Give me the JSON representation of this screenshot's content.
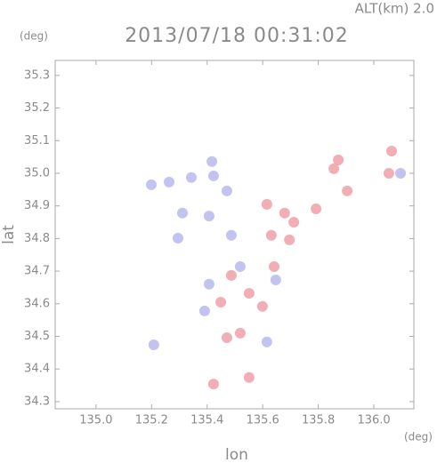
{
  "chart_data": {
    "type": "scatter",
    "title": "2013/07/18 00:31:02",
    "subtitle": "ALT(km) 2.0",
    "x_label": "lon",
    "y_label": "lat",
    "x_unit": "(deg)",
    "y_unit": "(deg)",
    "xlim": [
      134.853,
      136.144
    ],
    "ylim": [
      34.278,
      35.346
    ],
    "xticks": [
      {
        "value": 135,
        "label": "135.0"
      },
      135.2,
      135.4,
      135.6,
      135.8,
      {
        "value": 136,
        "label": "136.0"
      }
    ],
    "yticks": [
      34.3,
      34.4,
      34.5,
      34.6,
      34.7,
      34.8,
      34.9,
      {
        "value": 35,
        "label": "35.0"
      },
      35.1,
      35.2,
      35.3
    ],
    "series": [
      {
        "color": "#b8b8f0",
        "x": [
          135.199,
          135.263,
          135.343,
          135.423,
          135.417,
          135.311,
          135.407,
          135.471,
          135.295,
          135.208,
          136.096,
          135.487,
          135.407,
          135.615,
          135.391,
          135.519,
          135.647
        ],
        "y": [
          34.965,
          34.973,
          34.987,
          34.992,
          35.036,
          34.878,
          34.869,
          34.946,
          34.801,
          34.474,
          35.0,
          34.81,
          34.66,
          34.483,
          34.578,
          34.714,
          34.673
        ]
      },
      {
        "color": "#f0a0a8",
        "x": [
          135.487,
          135.551,
          135.599,
          135.615,
          135.679,
          135.696,
          135.631,
          135.792,
          135.712,
          135.872,
          135.856,
          136.054,
          136.064,
          135.904,
          135.551,
          135.471,
          135.423,
          135.519,
          135.641,
          135.449
        ],
        "y": [
          34.687,
          34.632,
          34.592,
          34.905,
          34.878,
          34.796,
          34.81,
          34.891,
          34.85,
          35.041,
          35.014,
          35.0,
          35.068,
          34.946,
          34.374,
          34.496,
          34.354,
          34.51,
          34.714,
          34.605
        ]
      }
    ]
  }
}
